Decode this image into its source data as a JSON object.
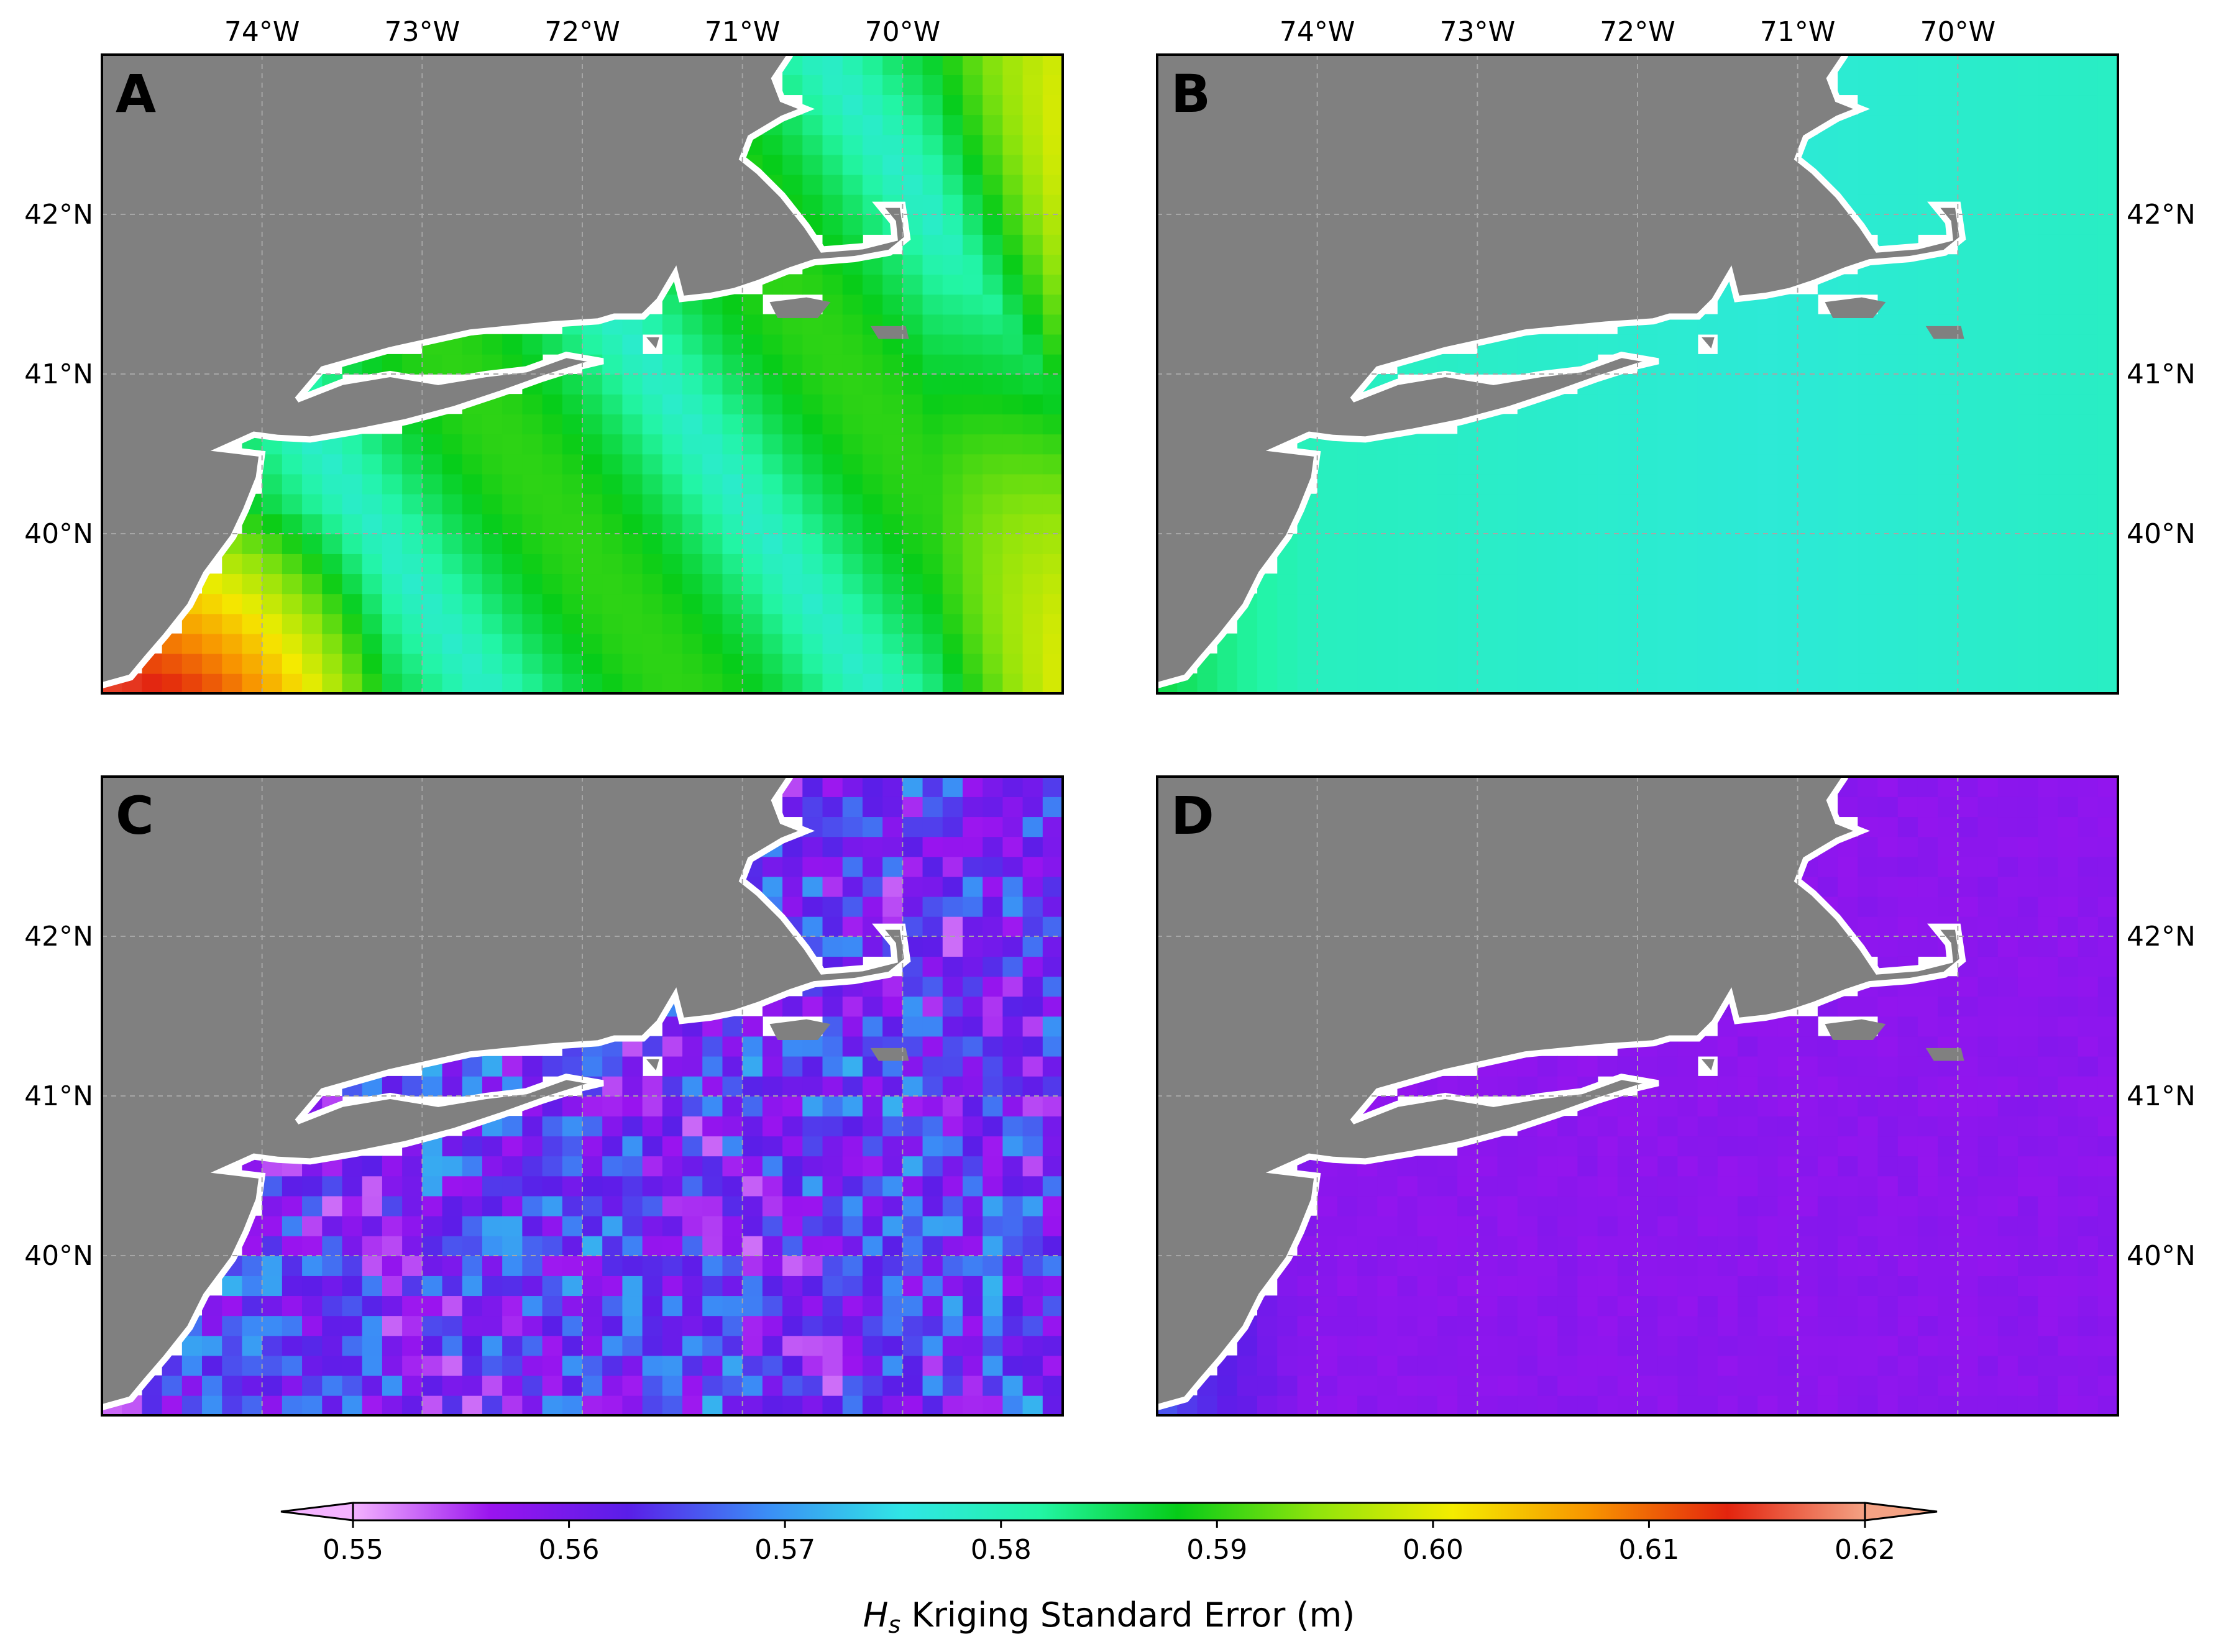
{
  "figure": {
    "lon_ticks": [
      "74°W",
      "73°W",
      "72°W",
      "71°W",
      "70°W"
    ],
    "lat_ticks": [
      "42°N",
      "41°N",
      "40°N"
    ],
    "extent": {
      "lon_min": -75.0,
      "lon_max": -69.0,
      "lat_min": 39.0,
      "lat_max": 43.0
    },
    "panels": [
      {
        "letter": "A",
        "pattern": "ordinary",
        "lon_labels": "top",
        "lat_labels": "left"
      },
      {
        "letter": "B",
        "pattern": "smooth",
        "lon_labels": "top",
        "lat_labels": "right"
      },
      {
        "letter": "C",
        "pattern": "noisy",
        "lon_labels": "none",
        "lat_labels": "left"
      },
      {
        "letter": "D",
        "pattern": "low",
        "lon_labels": "none",
        "lat_labels": "right"
      }
    ],
    "colorbar": {
      "min": 0.55,
      "max": 0.62,
      "ticks": [
        "0.55",
        "0.56",
        "0.57",
        "0.58",
        "0.59",
        "0.60",
        "0.61",
        "0.62"
      ],
      "label_prefix": "H",
      "label_sub": "s",
      "label_suffix": " Kriging Standard Error (m)",
      "extend": "both",
      "colormap": [
        "#f4b3ff",
        "#9a14ef",
        "#5a1ee8",
        "#3b8cf6",
        "#30e6e6",
        "#22f5a4",
        "#06cc18",
        "#8fe40c",
        "#f4ec00",
        "#f89400",
        "#e3240e",
        "#f4a284"
      ]
    },
    "colors": {
      "land": "#808080",
      "coast_gap": "#ffffff",
      "grid": "#a6a6a6"
    }
  }
}
